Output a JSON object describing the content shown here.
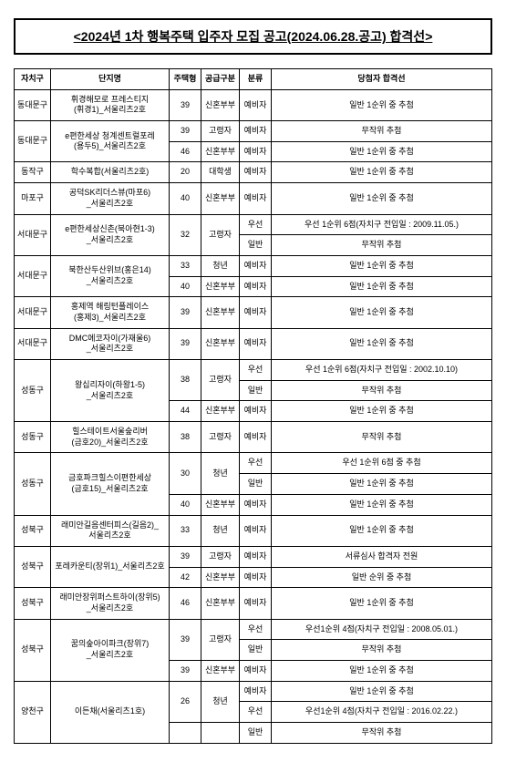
{
  "title": "<2024년 1차 행복주택 입주자 모집 공고(2024.06.28.공고) 합격선>",
  "headers": {
    "district": "자치구",
    "complex": "단지명",
    "type": "주택형",
    "supply": "공급구분",
    "category": "분류",
    "result": "당첨자 합격선"
  },
  "rows": [
    {
      "district": "동대문구",
      "complex": "휘경해모로 프레스티지\n(휘경1)_서울리츠2호",
      "type": "39",
      "supply": "신혼부부",
      "category": "예비자",
      "result": "일반 1순위 중 추첨"
    },
    {
      "district": "동대문구",
      "complex": "e편한세상 청계센트럴포레\n(용두5)_서울리츠2호",
      "type": "39",
      "supply": "고령자",
      "category": "예비자",
      "result": "무작위 추첨"
    },
    {
      "district": "",
      "complex": "",
      "type": "46",
      "supply": "신혼부부",
      "category": "예비자",
      "result": "일반 1순위 중 추첨"
    },
    {
      "district": "동작구",
      "complex": "학수복합(서울리츠2호)",
      "type": "20",
      "supply": "대학생",
      "category": "예비자",
      "result": "일반 1순위 중 추첨"
    },
    {
      "district": "마포구",
      "complex": "공덕SK리더스뷰(마포6)\n_서울리츠2호",
      "type": "40",
      "supply": "신혼부부",
      "category": "예비자",
      "result": "일반 1순위 중 추첨"
    },
    {
      "district": "서대문구",
      "complex": "e편한세상신촌(북아현1-3)\n_서울리츠2호",
      "type": "32",
      "supply": "고령자",
      "category": "우선",
      "result": "우선 1순위 6점(자치구 전입일 : 2009.11.05.)"
    },
    {
      "district": "",
      "complex": "",
      "type": "",
      "supply": "",
      "category": "일반",
      "result": "무작위 추첨"
    },
    {
      "district": "서대문구",
      "complex": "북한산두산위브(홍은14)\n_서울리츠2호",
      "type": "33",
      "supply": "청년",
      "category": "예비자",
      "result": "일반 1순위 중 추첨"
    },
    {
      "district": "",
      "complex": "",
      "type": "40",
      "supply": "신혼부부",
      "category": "예비자",
      "result": "일반 1순위 중 추첨"
    },
    {
      "district": "서대문구",
      "complex": "홍제역 해링턴플레이스\n(홍제3)_서울리츠2호",
      "type": "39",
      "supply": "신혼부부",
      "category": "예비자",
      "result": "일반 1순위 중 추첨"
    },
    {
      "district": "서대문구",
      "complex": "DMC에코자이(가재울6)\n_서울리츠2호",
      "type": "39",
      "supply": "신혼부부",
      "category": "예비자",
      "result": "일반 1순위 중 추첨"
    },
    {
      "district": "성동구",
      "complex": "왕십리자이(하왕1-5)\n_서울리츠2호",
      "type": "38",
      "supply": "고령자",
      "category": "우선",
      "result": "우선 1순위 6점(자치구 전입일 : 2002.10.10)"
    },
    {
      "district": "",
      "complex": "",
      "type": "",
      "supply": "",
      "category": "일반",
      "result": "무작위 추첨"
    },
    {
      "district": "",
      "complex": "",
      "type": "44",
      "supply": "신혼부부",
      "category": "예비자",
      "result": "일반 1순위 중 추첨"
    },
    {
      "district": "성동구",
      "complex": "힐스테이트서울숲리버\n(금호20)_서울리츠2호",
      "type": "38",
      "supply": "고령자",
      "category": "예비자",
      "result": "무작위 추첨"
    },
    {
      "district": "성동구",
      "complex": "금호파크힐스이편한세상\n(금호15)_서울리츠2호",
      "type": "30",
      "supply": "청년",
      "category": "우선",
      "result": "우선 1순위 6점 중 추첨"
    },
    {
      "district": "",
      "complex": "",
      "type": "",
      "supply": "",
      "category": "일반",
      "result": "일반 1순위 중 추첨"
    },
    {
      "district": "",
      "complex": "",
      "type": "40",
      "supply": "신혼부부",
      "category": "예비자",
      "result": "일반 1순위 중 추첨"
    },
    {
      "district": "성북구",
      "complex": "래미안길음센터피스(길음2)_\n서울리츠2호",
      "type": "33",
      "supply": "청년",
      "category": "예비자",
      "result": "일반 1순위 중 추첨"
    },
    {
      "district": "성북구",
      "complex": "포레카운티(장위1)_서울리츠2호",
      "type": "39",
      "supply": "고령자",
      "category": "예비자",
      "result": "서류심사 합격자 전원"
    },
    {
      "district": "",
      "complex": "",
      "type": "42",
      "supply": "신혼부부",
      "category": "예비자",
      "result": "일반 순위 중 추첨"
    },
    {
      "district": "성북구",
      "complex": "래미안장위퍼스트하이(장위5)\n_서울리츠2호",
      "type": "46",
      "supply": "신혼부부",
      "category": "예비자",
      "result": "일반 1순위 중 추첨"
    },
    {
      "district": "성북구",
      "complex": "꿈의숲아이파크(장위7)\n_서울리츠2호",
      "type": "39",
      "supply": "고령자",
      "category": "우선",
      "result": "우선1순위 4점(자치구 전입일 : 2008.05.01.)"
    },
    {
      "district": "",
      "complex": "",
      "type": "",
      "supply": "",
      "category": "일반",
      "result": "무작위 추첨"
    },
    {
      "district": "",
      "complex": "",
      "type": "39",
      "supply": "신혼부부",
      "category": "예비자",
      "result": "일반 1순위 중 추첨"
    },
    {
      "district": "양천구",
      "complex": "이든채(서울리츠1호)",
      "type": "26",
      "supply": "청년",
      "category": "예비자",
      "result": "일반 1순위 중 추첨"
    },
    {
      "district": "",
      "complex": "",
      "type": "39",
      "supply": "고령자",
      "category": "우선",
      "result": "우선1순위 4점(자치구 전입일 : 2016.02.22.)"
    },
    {
      "district": "",
      "complex": "",
      "type": "",
      "supply": "",
      "category": "일반",
      "result": "무작위 추첨"
    }
  ],
  "merges": [
    {
      "start": 1,
      "district_span": 2,
      "complex_span": 2
    },
    {
      "start": 5,
      "district_span": 2,
      "complex_span": 2,
      "type_span": 2,
      "supply_span": 2
    },
    {
      "start": 7,
      "district_span": 2,
      "complex_span": 2
    },
    {
      "start": 11,
      "district_span": 3,
      "complex_span": 3,
      "type_span": 2,
      "supply_span": 2
    },
    {
      "start": 15,
      "district_span": 3,
      "complex_span": 3,
      "type_span": 2,
      "supply_span": 2
    },
    {
      "start": 19,
      "district_span": 2,
      "complex_span": 2
    },
    {
      "start": 22,
      "district_span": 3,
      "complex_span": 3,
      "type_span": 2,
      "supply_span": 2
    },
    {
      "start": 25,
      "district_span": 3,
      "complex_span": 3,
      "type_span": 2,
      "supply_span": 2
    }
  ]
}
